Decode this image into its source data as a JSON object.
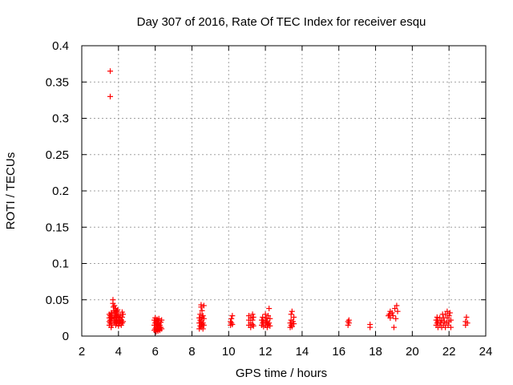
{
  "chart_data": {
    "type": "scatter",
    "title": "Day 307 of 2016, Rate Of TEC Index for receiver esqu",
    "xlabel": "GPS time / hours",
    "ylabel": "ROTI / TECUs",
    "xlim": [
      2,
      24
    ],
    "ylim": [
      0,
      0.4
    ],
    "xticks": [
      2,
      4,
      6,
      8,
      10,
      12,
      14,
      16,
      18,
      20,
      22,
      24
    ],
    "yticks": [
      0,
      0.05,
      0.1,
      0.15,
      0.2,
      0.25,
      0.3,
      0.35,
      0.4
    ],
    "xtick_labels": [
      "2",
      "4",
      "6",
      "8",
      "10",
      "12",
      "14",
      "16",
      "18",
      "20",
      "22",
      "24"
    ],
    "ytick_labels": [
      "0",
      "0.05",
      "0.1",
      "0.15",
      "0.2",
      "0.25",
      "0.3",
      "0.35",
      "0.4"
    ],
    "grid": true,
    "marker": "+",
    "color": "#ff0000",
    "series": [
      {
        "name": "ROTI",
        "points": [
          [
            3.55,
            0.365
          ],
          [
            3.55,
            0.33
          ],
          [
            3.5,
            0.015
          ],
          [
            3.5,
            0.02
          ],
          [
            3.5,
            0.025
          ],
          [
            3.5,
            0.03
          ],
          [
            3.55,
            0.018
          ],
          [
            3.55,
            0.022
          ],
          [
            3.55,
            0.028
          ],
          [
            3.6,
            0.012
          ],
          [
            3.6,
            0.02
          ],
          [
            3.6,
            0.026
          ],
          [
            3.6,
            0.032
          ],
          [
            3.65,
            0.015
          ],
          [
            3.65,
            0.024
          ],
          [
            3.65,
            0.03
          ],
          [
            3.7,
            0.045
          ],
          [
            3.7,
            0.05
          ],
          [
            3.72,
            0.04
          ],
          [
            3.75,
            0.018
          ],
          [
            3.75,
            0.025
          ],
          [
            3.75,
            0.035
          ],
          [
            3.78,
            0.042
          ],
          [
            3.8,
            0.02
          ],
          [
            3.8,
            0.028
          ],
          [
            3.8,
            0.033
          ],
          [
            3.85,
            0.015
          ],
          [
            3.85,
            0.022
          ],
          [
            3.85,
            0.03
          ],
          [
            3.85,
            0.038
          ],
          [
            3.9,
            0.018
          ],
          [
            3.9,
            0.026
          ],
          [
            3.9,
            0.034
          ],
          [
            3.95,
            0.02
          ],
          [
            3.95,
            0.028
          ],
          [
            3.95,
            0.036
          ],
          [
            4.0,
            0.014
          ],
          [
            4.0,
            0.022
          ],
          [
            4.0,
            0.03
          ],
          [
            4.05,
            0.018
          ],
          [
            4.05,
            0.025
          ],
          [
            4.1,
            0.02
          ],
          [
            4.1,
            0.028
          ],
          [
            4.15,
            0.015
          ],
          [
            4.15,
            0.022
          ],
          [
            4.2,
            0.018
          ],
          [
            4.2,
            0.026
          ],
          [
            4.2,
            0.033
          ],
          [
            4.25,
            0.02
          ],
          [
            4.25,
            0.03
          ],
          [
            5.95,
            0.008
          ],
          [
            5.95,
            0.015
          ],
          [
            5.95,
            0.022
          ],
          [
            6.0,
            0.01
          ],
          [
            6.0,
            0.018
          ],
          [
            6.0,
            0.025
          ],
          [
            6.05,
            0.006
          ],
          [
            6.05,
            0.012
          ],
          [
            6.05,
            0.02
          ],
          [
            6.1,
            0.009
          ],
          [
            6.1,
            0.016
          ],
          [
            6.1,
            0.023
          ],
          [
            6.15,
            0.007
          ],
          [
            6.15,
            0.014
          ],
          [
            6.15,
            0.021
          ],
          [
            6.2,
            0.01
          ],
          [
            6.2,
            0.017
          ],
          [
            6.2,
            0.024
          ],
          [
            6.25,
            0.008
          ],
          [
            6.25,
            0.015
          ],
          [
            6.3,
            0.012
          ],
          [
            6.3,
            0.019
          ],
          [
            6.35,
            0.01
          ],
          [
            6.35,
            0.022
          ],
          [
            8.4,
            0.01
          ],
          [
            8.4,
            0.018
          ],
          [
            8.4,
            0.025
          ],
          [
            8.45,
            0.014
          ],
          [
            8.45,
            0.022
          ],
          [
            8.45,
            0.03
          ],
          [
            8.5,
            0.043
          ],
          [
            8.5,
            0.04
          ],
          [
            8.5,
            0.012
          ],
          [
            8.5,
            0.02
          ],
          [
            8.55,
            0.016
          ],
          [
            8.55,
            0.026
          ],
          [
            8.55,
            0.035
          ],
          [
            8.6,
            0.01
          ],
          [
            8.6,
            0.018
          ],
          [
            8.6,
            0.028
          ],
          [
            8.65,
            0.015
          ],
          [
            8.65,
            0.024
          ],
          [
            8.65,
            0.042
          ],
          [
            10.1,
            0.015
          ],
          [
            10.1,
            0.02
          ],
          [
            10.15,
            0.018
          ],
          [
            10.15,
            0.024
          ],
          [
            10.2,
            0.016
          ],
          [
            10.2,
            0.028
          ],
          [
            11.1,
            0.015
          ],
          [
            11.1,
            0.022
          ],
          [
            11.1,
            0.028
          ],
          [
            11.2,
            0.012
          ],
          [
            11.2,
            0.018
          ],
          [
            11.2,
            0.025
          ],
          [
            11.3,
            0.016
          ],
          [
            11.3,
            0.022
          ],
          [
            11.3,
            0.03
          ],
          [
            11.35,
            0.014
          ],
          [
            11.35,
            0.026
          ],
          [
            11.8,
            0.015
          ],
          [
            11.8,
            0.022
          ],
          [
            11.85,
            0.018
          ],
          [
            11.85,
            0.026
          ],
          [
            11.9,
            0.013
          ],
          [
            11.9,
            0.02
          ],
          [
            12.0,
            0.015
          ],
          [
            12.0,
            0.022
          ],
          [
            12.0,
            0.03
          ],
          [
            12.05,
            0.018
          ],
          [
            12.05,
            0.025
          ],
          [
            12.1,
            0.012
          ],
          [
            12.1,
            0.02
          ],
          [
            12.15,
            0.016
          ],
          [
            12.15,
            0.028
          ],
          [
            12.2,
            0.018
          ],
          [
            12.2,
            0.038
          ],
          [
            12.25,
            0.014
          ],
          [
            12.25,
            0.024
          ],
          [
            13.35,
            0.012
          ],
          [
            13.35,
            0.018
          ],
          [
            13.4,
            0.015
          ],
          [
            13.4,
            0.022
          ],
          [
            13.4,
            0.03
          ],
          [
            13.45,
            0.013
          ],
          [
            13.45,
            0.034
          ],
          [
            13.5,
            0.02
          ],
          [
            13.55,
            0.017
          ],
          [
            13.55,
            0.026
          ],
          [
            16.5,
            0.015
          ],
          [
            16.5,
            0.02
          ],
          [
            16.55,
            0.018
          ],
          [
            16.55,
            0.022
          ],
          [
            17.7,
            0.012
          ],
          [
            17.7,
            0.016
          ],
          [
            18.7,
            0.028
          ],
          [
            18.75,
            0.03
          ],
          [
            18.8,
            0.025
          ],
          [
            18.8,
            0.034
          ],
          [
            18.9,
            0.032
          ],
          [
            18.95,
            0.028
          ],
          [
            19.0,
            0.012
          ],
          [
            19.05,
            0.038
          ],
          [
            19.1,
            0.024
          ],
          [
            19.15,
            0.042
          ],
          [
            19.2,
            0.034
          ],
          [
            21.3,
            0.015
          ],
          [
            21.3,
            0.022
          ],
          [
            21.35,
            0.018
          ],
          [
            21.35,
            0.026
          ],
          [
            21.4,
            0.012
          ],
          [
            21.4,
            0.02
          ],
          [
            21.5,
            0.015
          ],
          [
            21.5,
            0.025
          ],
          [
            21.55,
            0.018
          ],
          [
            21.6,
            0.012
          ],
          [
            21.6,
            0.022
          ],
          [
            21.65,
            0.03
          ],
          [
            21.7,
            0.015
          ],
          [
            21.7,
            0.025
          ],
          [
            21.75,
            0.02
          ],
          [
            21.8,
            0.012
          ],
          [
            21.8,
            0.03
          ],
          [
            21.85,
            0.018
          ],
          [
            21.9,
            0.025
          ],
          [
            21.9,
            0.034
          ],
          [
            21.95,
            0.015
          ],
          [
            22.0,
            0.02
          ],
          [
            22.0,
            0.028
          ],
          [
            22.05,
            0.032
          ],
          [
            22.1,
            0.012
          ],
          [
            22.1,
            0.022
          ],
          [
            22.9,
            0.015
          ],
          [
            22.9,
            0.02
          ],
          [
            22.95,
            0.026
          ],
          [
            23.0,
            0.018
          ]
        ]
      }
    ]
  }
}
